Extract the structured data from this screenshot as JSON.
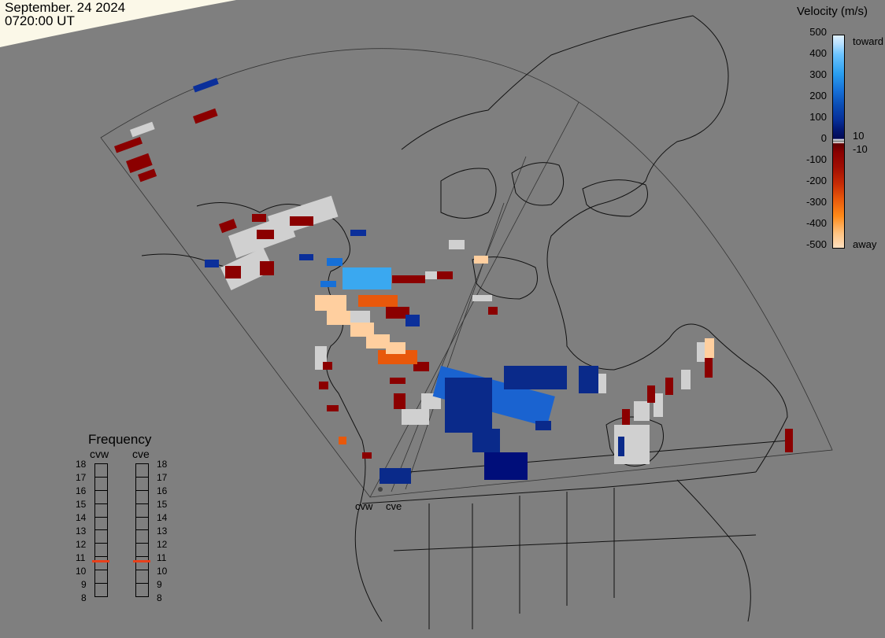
{
  "header": {
    "date": "September. 24 2024",
    "time": "0720:00 UT"
  },
  "velocity_legend": {
    "title": "Velocity (m/s)",
    "ticks": [
      "500",
      "400",
      "300",
      "200",
      "100",
      "0",
      "-100",
      "-200",
      "-300",
      "-400",
      "-500"
    ],
    "label_toward": "toward",
    "label_away": "away",
    "label_pos_thresh": "10",
    "label_neg_thresh": "-10",
    "colors": {
      "toward_max": "#dff1ff",
      "toward_mid": "#1670d8",
      "toward_min": "#020a55",
      "away_min": "#6a0000",
      "away_mid": "#e8580b",
      "away_max": "#ffe0c0",
      "ground_scatter": "#d0d0d0"
    }
  },
  "frequency_panel": {
    "title": "Frequency",
    "radars": [
      {
        "name": "cvw",
        "frequency_mhz": 11
      },
      {
        "name": "cve",
        "frequency_mhz": 11
      }
    ],
    "scale": [
      "18",
      "17",
      "16",
      "15",
      "14",
      "13",
      "12",
      "11",
      "10",
      "9",
      "8"
    ],
    "marker_color": "#e8401a"
  },
  "map": {
    "background_color": "#7f7f7f",
    "daylight_color": "#fbf8e8",
    "radar_sites": [
      "cvw",
      "cve"
    ]
  }
}
